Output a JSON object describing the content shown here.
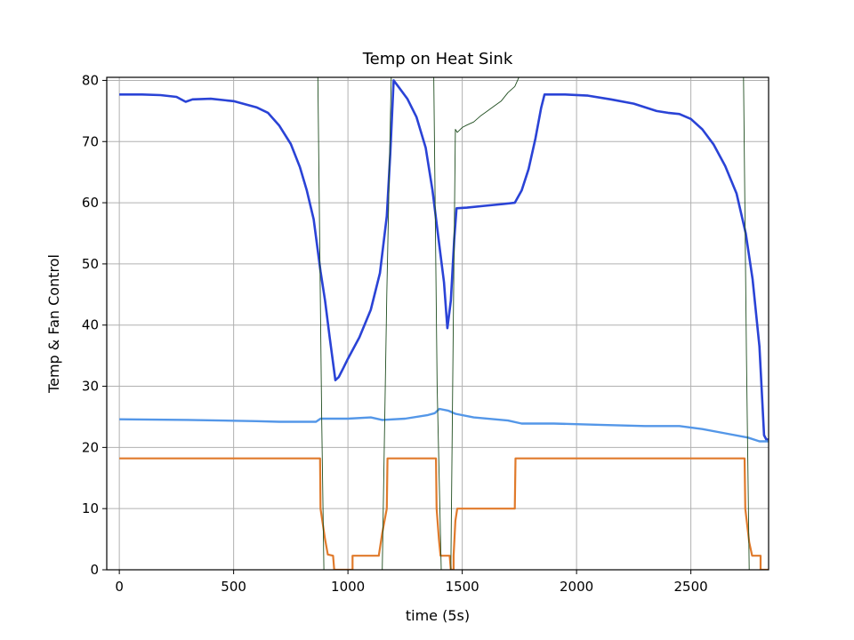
{
  "chart_data": {
    "type": "line",
    "title": "Temp on Heat Sink",
    "xlabel": "time (5s)",
    "ylabel": "Temp & Fan Control",
    "xlim": [
      -55,
      2840
    ],
    "ylim": [
      0,
      80.5
    ],
    "xticks": [
      "0",
      "500",
      "1000",
      "1500",
      "2000",
      "2500"
    ],
    "yticks": [
      "0",
      "10",
      "20",
      "30",
      "40",
      "50",
      "60",
      "70",
      "80"
    ],
    "grid": true,
    "series": [
      {
        "color": "#2a43d6",
        "points": [
          [
            0,
            77.7
          ],
          [
            100,
            77.7
          ],
          [
            180,
            77.6
          ],
          [
            250,
            77.3
          ],
          [
            290,
            76.5
          ],
          [
            320,
            76.9
          ],
          [
            400,
            77.0
          ],
          [
            500,
            76.6
          ],
          [
            600,
            75.6
          ],
          [
            650,
            74.7
          ],
          [
            700,
            72.6
          ],
          [
            750,
            69.6
          ],
          [
            790,
            65.8
          ],
          [
            820,
            62.0
          ],
          [
            850,
            57.3
          ],
          [
            880,
            48.8
          ],
          [
            900,
            44.0
          ],
          [
            920,
            38.0
          ],
          [
            945,
            31.0
          ],
          [
            960,
            31.5
          ],
          [
            980,
            33.0
          ],
          [
            1000,
            34.5
          ],
          [
            1050,
            38.0
          ],
          [
            1100,
            42.5
          ],
          [
            1140,
            48.5
          ],
          [
            1170,
            57.8
          ],
          [
            1185,
            68.0
          ],
          [
            1200,
            80.0
          ],
          [
            1220,
            79.0
          ],
          [
            1260,
            77.0
          ],
          [
            1300,
            74.0
          ],
          [
            1340,
            69.0
          ],
          [
            1370,
            62.0
          ],
          [
            1400,
            53.0
          ],
          [
            1420,
            47.0
          ],
          [
            1435,
            39.5
          ],
          [
            1450,
            44.0
          ],
          [
            1465,
            54.0
          ],
          [
            1475,
            59.1
          ],
          [
            1520,
            59.2
          ],
          [
            1600,
            59.5
          ],
          [
            1680,
            59.8
          ],
          [
            1730,
            60.0
          ],
          [
            1760,
            62.0
          ],
          [
            1790,
            65.5
          ],
          [
            1820,
            70.5
          ],
          [
            1845,
            75.5
          ],
          [
            1860,
            77.7
          ],
          [
            1950,
            77.7
          ],
          [
            2050,
            77.5
          ],
          [
            2150,
            76.9
          ],
          [
            2250,
            76.2
          ],
          [
            2350,
            75.0
          ],
          [
            2400,
            74.7
          ],
          [
            2450,
            74.5
          ],
          [
            2500,
            73.7
          ],
          [
            2550,
            72.0
          ],
          [
            2600,
            69.5
          ],
          [
            2650,
            66.0
          ],
          [
            2700,
            61.5
          ],
          [
            2740,
            55.0
          ],
          [
            2770,
            47.5
          ],
          [
            2800,
            36.5
          ],
          [
            2820,
            22.0
          ],
          [
            2830,
            21.3
          ],
          [
            2845,
            21.3
          ]
        ]
      },
      {
        "color": "#5497e8",
        "points": [
          [
            0,
            24.6
          ],
          [
            300,
            24.5
          ],
          [
            600,
            24.3
          ],
          [
            700,
            24.2
          ],
          [
            860,
            24.2
          ],
          [
            880,
            24.7
          ],
          [
            1000,
            24.7
          ],
          [
            1100,
            24.9
          ],
          [
            1150,
            24.5
          ],
          [
            1250,
            24.7
          ],
          [
            1350,
            25.3
          ],
          [
            1380,
            25.6
          ],
          [
            1400,
            26.3
          ],
          [
            1440,
            26.0
          ],
          [
            1470,
            25.5
          ],
          [
            1550,
            24.9
          ],
          [
            1700,
            24.4
          ],
          [
            1760,
            23.9
          ],
          [
            1900,
            23.9
          ],
          [
            2100,
            23.7
          ],
          [
            2300,
            23.5
          ],
          [
            2450,
            23.5
          ],
          [
            2550,
            23.0
          ],
          [
            2650,
            22.3
          ],
          [
            2750,
            21.6
          ],
          [
            2800,
            21.0
          ],
          [
            2845,
            21.0
          ]
        ]
      },
      {
        "color": "#e07a2b",
        "points": [
          [
            0,
            18.2
          ],
          [
            878,
            18.2
          ],
          [
            880,
            10.0
          ],
          [
            900,
            5.0
          ],
          [
            912,
            2.5
          ],
          [
            935,
            2.3
          ],
          [
            940,
            0.0
          ],
          [
            1020,
            0.0
          ],
          [
            1020,
            2.3
          ],
          [
            1135,
            2.3
          ],
          [
            1150,
            6.0
          ],
          [
            1170,
            10.0
          ],
          [
            1173,
            18.2
          ],
          [
            1385,
            18.2
          ],
          [
            1388,
            10.0
          ],
          [
            1398,
            5.0
          ],
          [
            1405,
            2.3
          ],
          [
            1445,
            2.3
          ],
          [
            1450,
            0.0
          ],
          [
            1462,
            0.0
          ],
          [
            1462,
            2.3
          ],
          [
            1470,
            8.0
          ],
          [
            1478,
            10.0
          ],
          [
            1730,
            10.0
          ],
          [
            1733,
            18.2
          ],
          [
            2735,
            18.2
          ],
          [
            2738,
            10.0
          ],
          [
            2755,
            4.5
          ],
          [
            2768,
            2.3
          ],
          [
            2805,
            2.3
          ],
          [
            2805,
            0.0
          ],
          [
            2845,
            0.0
          ]
        ]
      },
      {
        "color": "#1f4d1f",
        "points": [
          [
            868,
            82
          ],
          [
            885,
            25
          ],
          [
            895,
            0
          ],
          [
            1150,
            0
          ],
          [
            1170,
            45
          ],
          [
            1190,
            82
          ],
          [
            1375,
            82
          ],
          [
            1390,
            30
          ],
          [
            1408,
            0
          ],
          [
            1450,
            0
          ],
          [
            1462,
            45
          ],
          [
            1470,
            72
          ],
          [
            1478,
            71.5
          ],
          [
            1500,
            72.3
          ],
          [
            1520,
            72.7
          ],
          [
            1550,
            73.2
          ],
          [
            1580,
            74.2
          ],
          [
            1610,
            75.0
          ],
          [
            1640,
            75.8
          ],
          [
            1670,
            76.6
          ],
          [
            1700,
            78.0
          ],
          [
            1730,
            79.0
          ],
          [
            1760,
            81.5
          ],
          [
            1770,
            82
          ],
          [
            2730,
            82
          ],
          [
            2743,
            35
          ],
          [
            2755,
            0
          ],
          [
            2845,
            0
          ]
        ]
      }
    ]
  }
}
